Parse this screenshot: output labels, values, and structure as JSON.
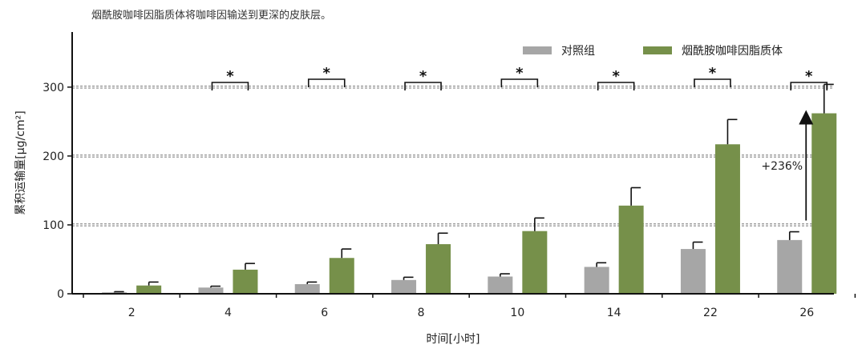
{
  "caption": "烟酰胺咖啡因脂质体将咖啡因输送到更深的皮肤层。",
  "chart_data": {
    "type": "bar",
    "categories": [
      "2",
      "4",
      "6",
      "8",
      "10",
      "14",
      "22",
      "26"
    ],
    "series": [
      {
        "name": "对照组",
        "color": "#a6a6a6",
        "values": [
          2,
          9,
          14,
          20,
          25,
          39,
          65,
          78
        ],
        "errors": [
          1,
          2,
          3,
          4,
          4,
          6,
          10,
          12
        ]
      },
      {
        "name": "烟酰胺咖啡因脂质体",
        "color": "#76904a",
        "values": [
          12,
          35,
          52,
          72,
          91,
          128,
          217,
          262
        ],
        "errors": [
          5,
          9,
          13,
          16,
          19,
          26,
          36,
          42
        ]
      }
    ],
    "ylim": [
      0,
      380
    ],
    "yticks": [
      0,
      100,
      200,
      300
    ],
    "xlabel": "时间[小时]",
    "ylabel": "累积运输量[μg/cm²]",
    "gridlines": [
      100,
      200,
      300
    ],
    "significance": [
      "*",
      "*",
      "*",
      "*",
      "*",
      "*",
      "*"
    ],
    "annotation": {
      "text": "+236%",
      "category": "26"
    },
    "legend_position": "top-right"
  }
}
